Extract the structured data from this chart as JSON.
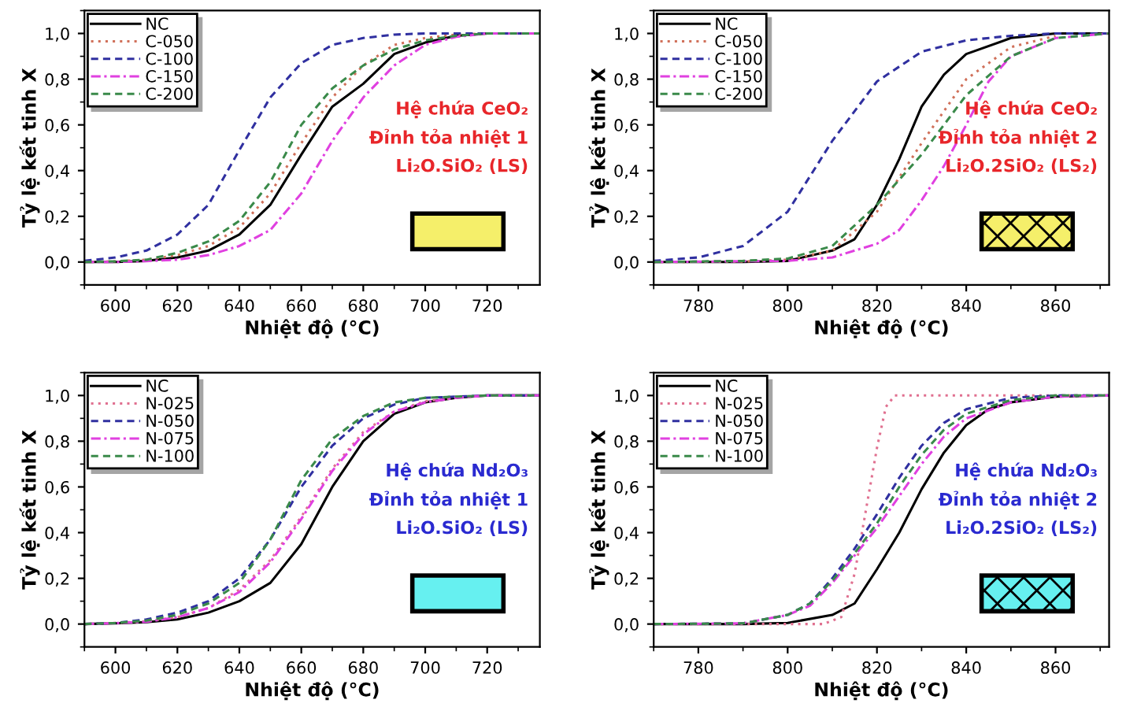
{
  "chart_data": [
    {
      "type": "line",
      "xlabel": "Nhiệt độ (°C)",
      "ylabel": "Tỷ lệ kết tinh X",
      "xlim": [
        590,
        737
      ],
      "xticks": [
        600,
        620,
        640,
        660,
        680,
        700,
        720
      ],
      "ylim": [
        -0.1,
        1.1
      ],
      "yticks": [
        {
          "value": 0,
          "label": "0,0"
        },
        {
          "value": 0.2,
          "label": "0,2"
        },
        {
          "value": 0.4,
          "label": "0,4"
        },
        {
          "value": 0.6,
          "label": "0,6"
        },
        {
          "value": 0.8,
          "label": "0,8"
        },
        {
          "value": 1.0,
          "label": "1,0"
        }
      ],
      "grid": false,
      "legend": "top left",
      "marker": "none",
      "annotations": [
        "Hệ chứa CeO₂",
        "Đỉnh tỏa nhiệt 1",
        "Li₂O.SiO₂ (LS)"
      ],
      "series": [
        {
          "name": "NC",
          "color": "#000000",
          "line_style": "solid",
          "x": [
            590,
            600,
            610,
            620,
            630,
            640,
            650,
            660,
            670,
            680,
            690,
            700,
            710,
            720,
            737
          ],
          "values": [
            0,
            0,
            0.005,
            0.02,
            0.05,
            0.12,
            0.25,
            0.47,
            0.68,
            0.78,
            0.91,
            0.96,
            0.99,
            1.0,
            1.0
          ]
        },
        {
          "name": "C-050",
          "color": "#d0705a",
          "line_style": "dotted",
          "x": [
            590,
            600,
            610,
            620,
            630,
            640,
            650,
            660,
            670,
            680,
            690,
            700,
            710,
            720,
            737
          ],
          "values": [
            0,
            0.003,
            0.01,
            0.03,
            0.07,
            0.15,
            0.3,
            0.52,
            0.72,
            0.86,
            0.95,
            0.98,
            0.995,
            1.0,
            1.0
          ]
        },
        {
          "name": "C-100",
          "color": "#3030a0",
          "line_style": "dashed",
          "x": [
            590,
            600,
            610,
            620,
            630,
            640,
            650,
            660,
            670,
            680,
            690,
            700,
            737
          ],
          "values": [
            0.005,
            0.02,
            0.05,
            0.12,
            0.25,
            0.49,
            0.72,
            0.87,
            0.95,
            0.98,
            0.995,
            1.0,
            1.0
          ]
        },
        {
          "name": "C-150",
          "color": "#e040e0",
          "line_style": "dashdot",
          "x": [
            590,
            600,
            610,
            620,
            630,
            640,
            650,
            660,
            670,
            680,
            690,
            700,
            710,
            720,
            737
          ],
          "values": [
            0,
            0,
            0.004,
            0.01,
            0.03,
            0.07,
            0.14,
            0.3,
            0.53,
            0.72,
            0.86,
            0.95,
            0.985,
            1.0,
            1.0
          ]
        },
        {
          "name": "C-200",
          "color": "#3a8a4a",
          "line_style": "dashed",
          "x": [
            590,
            600,
            610,
            620,
            630,
            640,
            650,
            660,
            670,
            680,
            690,
            700,
            710,
            720,
            737
          ],
          "values": [
            0,
            0.003,
            0.01,
            0.04,
            0.09,
            0.18,
            0.35,
            0.6,
            0.76,
            0.86,
            0.93,
            0.97,
            0.99,
            1.0,
            1.0
          ]
        }
      ]
    },
    {
      "type": "line",
      "xlabel": "Nhiệt độ (°C)",
      "ylabel": "Tỷ lệ kết tinh X",
      "xlim": [
        770,
        872
      ],
      "xticks": [
        780,
        800,
        820,
        840,
        860
      ],
      "ylim": [
        -0.1,
        1.1
      ],
      "yticks": [
        {
          "value": 0,
          "label": "0,0"
        },
        {
          "value": 0.2,
          "label": "0,2"
        },
        {
          "value": 0.4,
          "label": "0,4"
        },
        {
          "value": 0.6,
          "label": "0,6"
        },
        {
          "value": 0.8,
          "label": "0,8"
        },
        {
          "value": 1.0,
          "label": "1,0"
        }
      ],
      "grid": false,
      "legend": "top left",
      "marker": "none",
      "annotations": [
        "Hệ chứa CeO₂",
        "Đỉnh tỏa nhiệt 2",
        "Li₂O.2SiO₂ (LS₂)"
      ],
      "series": [
        {
          "name": "NC",
          "color": "#000000",
          "line_style": "solid",
          "x": [
            770,
            790,
            800,
            810,
            815,
            820,
            825,
            830,
            835,
            840,
            850,
            860,
            872
          ],
          "values": [
            0,
            0,
            0.005,
            0.05,
            0.1,
            0.25,
            0.45,
            0.68,
            0.82,
            0.91,
            0.98,
            1.0,
            1.0
          ]
        },
        {
          "name": "C-050",
          "color": "#d0705a",
          "line_style": "dotted",
          "x": [
            770,
            790,
            800,
            810,
            820,
            825,
            830,
            835,
            840,
            850,
            860
          ],
          "values": [
            0,
            0.002,
            0.01,
            0.05,
            0.22,
            0.37,
            0.52,
            0.66,
            0.8,
            0.94,
            0.99
          ]
        },
        {
          "name": "C-100",
          "color": "#3030a0",
          "line_style": "dashed",
          "x": [
            770,
            780,
            790,
            800,
            810,
            820,
            830,
            840,
            850,
            860,
            872
          ],
          "values": [
            0.005,
            0.02,
            0.07,
            0.22,
            0.53,
            0.79,
            0.92,
            0.97,
            0.99,
            1.0,
            1.0
          ]
        },
        {
          "name": "C-150",
          "color": "#e040e0",
          "line_style": "dashdot",
          "x": [
            770,
            800,
            810,
            820,
            825,
            830,
            835,
            840,
            845,
            850,
            860,
            872
          ],
          "values": [
            0,
            0.005,
            0.02,
            0.08,
            0.14,
            0.27,
            0.42,
            0.6,
            0.79,
            0.9,
            0.98,
            1.0
          ]
        },
        {
          "name": "C-200",
          "color": "#3a8a4a",
          "line_style": "dashed",
          "x": [
            770,
            790,
            800,
            810,
            820,
            825,
            830,
            835,
            840,
            850,
            860,
            872
          ],
          "values": [
            0,
            0.005,
            0.015,
            0.07,
            0.25,
            0.36,
            0.47,
            0.6,
            0.73,
            0.9,
            0.98,
            1.0
          ]
        }
      ]
    },
    {
      "type": "line",
      "xlabel": "Nhiệt độ (°C)",
      "ylabel": "Tỷ lệ kết tinh X",
      "xlim": [
        590,
        737
      ],
      "xticks": [
        600,
        620,
        640,
        660,
        680,
        700,
        720
      ],
      "ylim": [
        -0.1,
        1.1
      ],
      "yticks": [
        {
          "value": 0,
          "label": "0,0"
        },
        {
          "value": 0.2,
          "label": "0,2"
        },
        {
          "value": 0.4,
          "label": "0,4"
        },
        {
          "value": 0.6,
          "label": "0,6"
        },
        {
          "value": 0.8,
          "label": "0,8"
        },
        {
          "value": 1.0,
          "label": "1,0"
        }
      ],
      "grid": false,
      "legend": "top left",
      "marker": "none",
      "annotations": [
        "Hệ chứa Nd₂O₃",
        "Đỉnh tỏa nhiệt 1",
        "Li₂O.SiO₂ (LS)"
      ],
      "series": [
        {
          "name": "NC",
          "color": "#000000",
          "line_style": "solid",
          "x": [
            590,
            600,
            610,
            620,
            630,
            640,
            650,
            660,
            670,
            680,
            690,
            700,
            710,
            720,
            737
          ],
          "values": [
            0,
            0.003,
            0.008,
            0.02,
            0.05,
            0.1,
            0.18,
            0.35,
            0.6,
            0.8,
            0.92,
            0.97,
            0.99,
            1.0,
            1.0
          ]
        },
        {
          "name": "N-025",
          "color": "#e07090",
          "line_style": "dotted",
          "x": [
            590,
            600,
            610,
            620,
            630,
            640,
            650,
            660,
            670,
            680,
            690,
            700,
            710,
            720,
            737
          ],
          "values": [
            0,
            0.005,
            0.012,
            0.03,
            0.07,
            0.15,
            0.28,
            0.47,
            0.68,
            0.84,
            0.93,
            0.975,
            0.99,
            1.0,
            1.0
          ]
        },
        {
          "name": "N-050",
          "color": "#3030a0",
          "line_style": "dashed",
          "x": [
            590,
            600,
            610,
            620,
            630,
            640,
            650,
            660,
            670,
            680,
            690,
            700,
            720,
            737
          ],
          "values": [
            0,
            0.005,
            0.02,
            0.05,
            0.1,
            0.2,
            0.37,
            0.6,
            0.78,
            0.9,
            0.96,
            0.99,
            1.0,
            1.0
          ]
        },
        {
          "name": "N-075",
          "color": "#e040e0",
          "line_style": "dashdot",
          "x": [
            590,
            600,
            610,
            620,
            630,
            640,
            650,
            660,
            670,
            680,
            690,
            700,
            710,
            720,
            737
          ],
          "values": [
            0,
            0.004,
            0.01,
            0.03,
            0.07,
            0.14,
            0.27,
            0.46,
            0.67,
            0.83,
            0.93,
            0.97,
            0.99,
            1.0,
            1.0
          ]
        },
        {
          "name": "N-100",
          "color": "#3a8a4a",
          "line_style": "dashed",
          "x": [
            590,
            600,
            610,
            620,
            630,
            640,
            650,
            660,
            670,
            680,
            690,
            700,
            720,
            737
          ],
          "values": [
            0,
            0.005,
            0.015,
            0.04,
            0.09,
            0.18,
            0.37,
            0.63,
            0.81,
            0.91,
            0.97,
            0.99,
            1.0,
            1.0
          ]
        }
      ]
    },
    {
      "type": "line",
      "xlabel": "Nhiệt độ (°C)",
      "ylabel": "Tỷ lệ kết tinh X",
      "xlim": [
        770,
        872
      ],
      "xticks": [
        780,
        800,
        820,
        840,
        860
      ],
      "ylim": [
        -0.1,
        1.1
      ],
      "yticks": [
        {
          "value": 0,
          "label": "0,0"
        },
        {
          "value": 0.2,
          "label": "0,2"
        },
        {
          "value": 0.4,
          "label": "0,4"
        },
        {
          "value": 0.6,
          "label": "0,6"
        },
        {
          "value": 0.8,
          "label": "0,8"
        },
        {
          "value": 1.0,
          "label": "1,0"
        }
      ],
      "grid": false,
      "legend": "top left",
      "marker": "none",
      "annotations": [
        "Hệ chứa Nd₂O₃",
        "Đỉnh tỏa nhiệt 2",
        "Li₂O.2SiO₂ (LS₂)"
      ],
      "series": [
        {
          "name": "NC",
          "color": "#000000",
          "line_style": "solid",
          "x": [
            770,
            790,
            800,
            810,
            815,
            820,
            825,
            830,
            835,
            840,
            845,
            850,
            860,
            872
          ],
          "values": [
            0,
            0,
            0.005,
            0.04,
            0.09,
            0.24,
            0.4,
            0.59,
            0.75,
            0.87,
            0.94,
            0.97,
            0.995,
            1.0
          ]
        },
        {
          "name": "N-025",
          "color": "#e07090",
          "line_style": "dotted",
          "x": [
            770,
            808,
            812,
            815,
            818,
            820,
            822,
            824,
            872
          ],
          "values": [
            0,
            0,
            0.03,
            0.22,
            0.55,
            0.77,
            0.95,
            1.0,
            1.0
          ]
        },
        {
          "name": "N-050",
          "color": "#3030a0",
          "line_style": "dashed",
          "x": [
            770,
            790,
            800,
            805,
            810,
            815,
            820,
            825,
            830,
            835,
            840,
            850,
            860,
            872
          ],
          "values": [
            0,
            0.003,
            0.04,
            0.09,
            0.2,
            0.33,
            0.48,
            0.64,
            0.78,
            0.88,
            0.94,
            0.99,
            1.0,
            1.0
          ]
        },
        {
          "name": "N-075",
          "color": "#e040e0",
          "line_style": "dashdot",
          "x": [
            770,
            790,
            800,
            805,
            810,
            815,
            820,
            825,
            830,
            835,
            840,
            850,
            860,
            872
          ],
          "values": [
            0,
            0.003,
            0.04,
            0.08,
            0.18,
            0.3,
            0.42,
            0.56,
            0.7,
            0.82,
            0.9,
            0.97,
            0.995,
            1.0
          ]
        },
        {
          "name": "N-100",
          "color": "#3a8a4a",
          "line_style": "dashed",
          "x": [
            770,
            790,
            800,
            805,
            810,
            815,
            820,
            825,
            830,
            835,
            840,
            850,
            860,
            872
          ],
          "values": [
            0,
            0.003,
            0.04,
            0.09,
            0.19,
            0.31,
            0.44,
            0.6,
            0.74,
            0.85,
            0.92,
            0.98,
            1.0,
            1.0
          ]
        }
      ]
    }
  ]
}
